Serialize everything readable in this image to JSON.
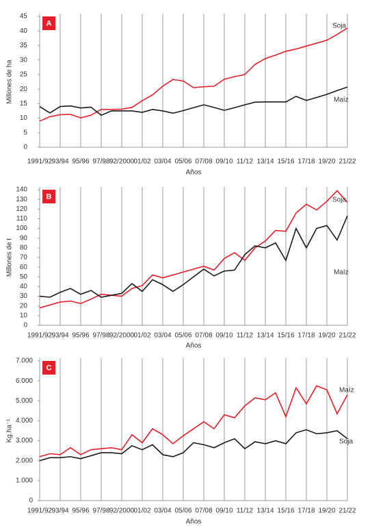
{
  "chart_data": [
    {
      "type": "line",
      "panel_label": "A",
      "xlabel": "Años",
      "ylabel": "Millones de ha",
      "categories": [
        "1991/92",
        null,
        "93/94",
        null,
        "95/96",
        null,
        "97/98",
        null,
        "92/2000",
        null,
        "01/02",
        null,
        "03/04",
        null,
        "05/06",
        null,
        "07/08",
        null,
        "09/10",
        null,
        "11/12",
        null,
        "13/14",
        null,
        "15/16",
        null,
        "17/18",
        null,
        "19/20",
        null,
        "21/22"
      ],
      "series": [
        {
          "name": "Soja",
          "color": "#e3202a",
          "values": [
            9,
            10.5,
            11.2,
            11.3,
            10.1,
            11,
            13,
            13,
            13.1,
            13.7,
            16,
            18,
            21,
            23.3,
            22.8,
            20.5,
            20.8,
            21,
            23.4,
            24.3,
            25,
            28.5,
            30.5,
            31.7,
            33,
            33.8,
            34.8,
            35.8,
            36.8,
            38.8,
            41
          ]
        },
        {
          "name": "Maíz",
          "color": "#1a1a1a",
          "values": [
            14,
            11.8,
            14,
            14.2,
            13.5,
            13.8,
            11,
            12.5,
            12.5,
            12.5,
            12,
            13,
            12.5,
            11.7,
            12.6,
            13.6,
            14.6,
            13.7,
            12.7,
            13.6,
            14.6,
            15.5,
            15.6,
            15.6,
            15.6,
            17.5,
            16.1,
            17.1,
            18.2,
            19.5,
            20.7
          ]
        }
      ],
      "ylim": [
        0,
        45
      ],
      "yticks": [
        0,
        5,
        10,
        15,
        20,
        25,
        30,
        35,
        40,
        45
      ],
      "grid": true
    },
    {
      "type": "line",
      "panel_label": "B",
      "xlabel": "Años",
      "ylabel": "Millones de t",
      "categories": [
        "1991/92",
        null,
        "93/94",
        null,
        "95/96",
        null,
        "97/98",
        null,
        "92/2000",
        null,
        "01/02",
        null,
        "03/04",
        null,
        "05/06",
        null,
        "07/08",
        null,
        "09/10",
        null,
        "11/12",
        null,
        "13/14",
        null,
        "15/16",
        null,
        "17/18",
        null,
        "19/20",
        null,
        "21/22"
      ],
      "series": [
        {
          "name": "Soja",
          "color": "#e3202a",
          "values": [
            18,
            21,
            24,
            25,
            22.5,
            27,
            32,
            31,
            30,
            38,
            41,
            52,
            49,
            52,
            55,
            58,
            61,
            57,
            69,
            75,
            67,
            80,
            87,
            98,
            97,
            116,
            125,
            119,
            128,
            139,
            127
          ]
        },
        {
          "name": "Maíz",
          "color": "#1a1a1a",
          "values": [
            30,
            29,
            34,
            38,
            32,
            36,
            29,
            31,
            33,
            43,
            35,
            47,
            42,
            35,
            42,
            50,
            58,
            51,
            56,
            57,
            73,
            82,
            80,
            85,
            67,
            100,
            80,
            100,
            103,
            88,
            113
          ]
        }
      ],
      "ylim": [
        0,
        140
      ],
      "yticks": [
        0,
        10,
        20,
        30,
        40,
        50,
        60,
        70,
        80,
        90,
        100,
        110,
        120,
        130,
        140
      ],
      "grid": true
    },
    {
      "type": "line",
      "panel_label": "C",
      "xlabel": "Años",
      "ylabel": "Kg.ha⁻¹",
      "categories": [
        "1991/92",
        null,
        "93/94",
        null,
        "95/96",
        null,
        "97/98",
        null,
        "92/2000",
        null,
        "01/02",
        null,
        "03/04",
        null,
        "05/06",
        null,
        "07/08",
        null,
        "09/10",
        null,
        "11/12",
        null,
        "13/14",
        null,
        "15/16",
        null,
        "17/18",
        null,
        "19/20",
        null,
        "21/22"
      ],
      "series": [
        {
          "name": "Maíz",
          "color": "#e3202a",
          "values": [
            2200,
            2350,
            2300,
            2650,
            2300,
            2550,
            2600,
            2650,
            2550,
            3300,
            2900,
            3600,
            3300,
            2850,
            3250,
            3600,
            3950,
            3600,
            4300,
            4150,
            4750,
            5150,
            5050,
            5400,
            4200,
            5650,
            4850,
            5750,
            5550,
            4350,
            5300
          ]
        },
        {
          "name": "Soja",
          "color": "#1a1a1a",
          "values": [
            2000,
            2150,
            2150,
            2200,
            2100,
            2250,
            2400,
            2400,
            2350,
            2750,
            2550,
            2800,
            2300,
            2200,
            2400,
            2900,
            2800,
            2650,
            2900,
            3100,
            2600,
            2950,
            2850,
            3000,
            2850,
            3400,
            3550,
            3350,
            3400,
            3500,
            3100
          ]
        }
      ],
      "ylim": [
        0,
        7000
      ],
      "yticks": [
        0,
        {
          "value": 1000,
          "label": "1.000"
        },
        {
          "value": 2000,
          "label": "2.000"
        },
        {
          "value": 3000,
          "label": "3.000"
        },
        {
          "value": 4000,
          "label": "4.000"
        },
        {
          "value": 5000,
          "label": "5.000"
        },
        {
          "value": 6000,
          "label": "6.000"
        },
        {
          "value": 7000,
          "label": "7.000"
        }
      ],
      "grid": true
    }
  ]
}
